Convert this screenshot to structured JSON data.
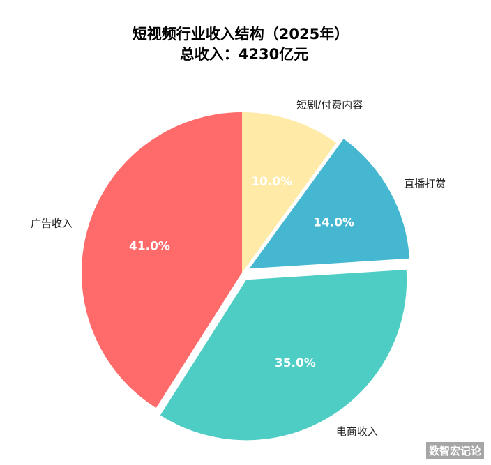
{
  "chart_data": {
    "type": "pie",
    "title": "短视频行业收入结构（2025年）",
    "subtitle": "总收入：4230亿元",
    "slices": [
      {
        "label": "广告收入",
        "value": 41.0,
        "pct_label": "41.0%",
        "color": "#ff6b6b",
        "exploded": false
      },
      {
        "label": "电商收入",
        "value": 35.0,
        "pct_label": "35.0%",
        "color": "#4ecdc4",
        "exploded": true
      },
      {
        "label": "直播打赏",
        "value": 14.0,
        "pct_label": "14.0%",
        "color": "#45b7d1",
        "exploded": true
      },
      {
        "label": "短剧/付费内容",
        "value": 10.0,
        "pct_label": "10.0%",
        "color": "#ffeaa7",
        "exploded": false
      }
    ],
    "start_angle_deg": 90,
    "direction": "counterclockwise",
    "legend": "none"
  },
  "watermark": "数智宏记论"
}
